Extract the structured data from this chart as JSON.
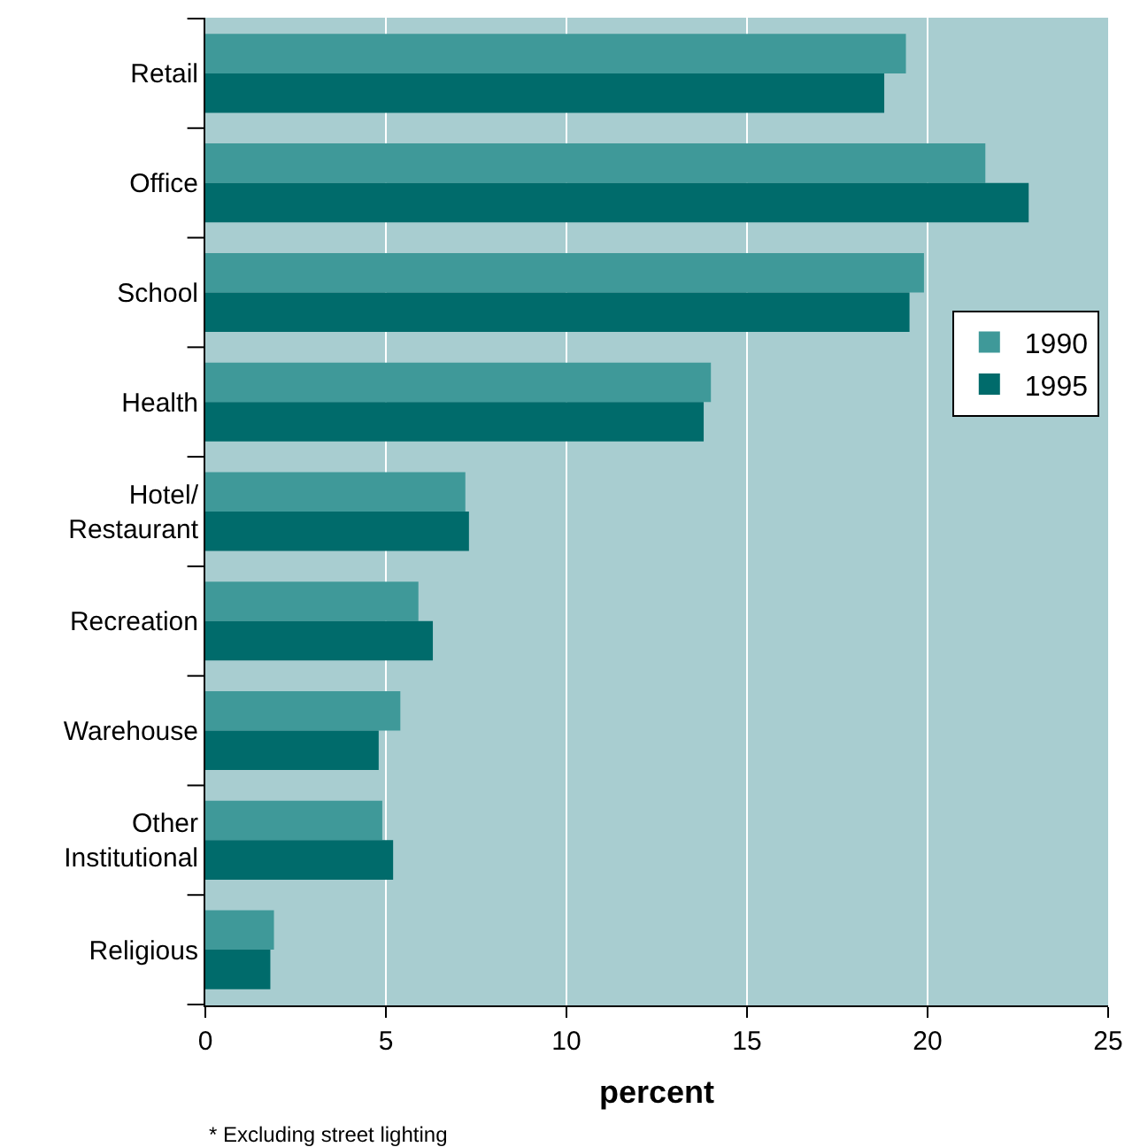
{
  "chart_data": {
    "type": "bar",
    "orientation": "horizontal",
    "xlabel": "percent",
    "categories": [
      "Retail",
      "Office",
      "School",
      "Health",
      "Hotel/\nRestaurant",
      "Recreation",
      "Warehouse",
      "Other\nInstitutional",
      "Religious"
    ],
    "series": [
      {
        "name": "1990",
        "color": "#3f9999",
        "values": [
          19.4,
          21.6,
          19.9,
          14.0,
          7.2,
          5.9,
          5.4,
          4.9,
          1.9
        ]
      },
      {
        "name": "1995",
        "color": "#006b6b",
        "values": [
          18.8,
          22.8,
          19.5,
          13.8,
          7.3,
          6.3,
          4.8,
          5.2,
          1.8
        ]
      }
    ],
    "xlim": [
      0,
      25
    ],
    "xticks": [
      0,
      5,
      10,
      15,
      20,
      25
    ],
    "grid": "x",
    "legend": "right",
    "annotations": [
      "* Excluding street lighting"
    ]
  }
}
